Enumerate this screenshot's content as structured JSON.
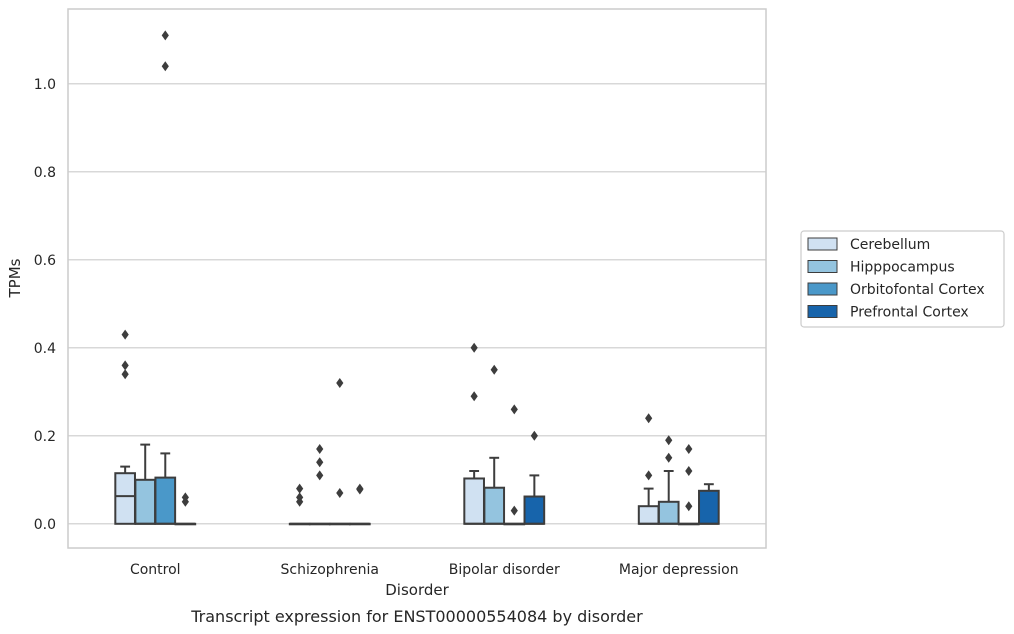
{
  "chart_data": {
    "type": "box",
    "caption": "Transcript expression for ENST00000554084 by disorder",
    "xlabel": "Disorder",
    "ylabel": "TPMs",
    "ylim": [
      -0.055,
      1.17
    ],
    "yticks": [
      0.0,
      0.2,
      0.4,
      0.6,
      0.8,
      1.0
    ],
    "ytick_labels": [
      "0.0",
      "0.2",
      "0.4",
      "0.6",
      "0.8",
      "1.0"
    ],
    "grid": "horizontal",
    "legend_position": "right",
    "categories": [
      "Control",
      "Schizophrenia",
      "Bipolar disorder",
      "Major depression"
    ],
    "series": [
      {
        "name": "Cerebellum",
        "color": "#d0e1f2",
        "boxes": [
          {
            "q1": 0.0,
            "median": 0.063,
            "q3": 0.115,
            "whisker_low": 0.0,
            "whisker_high": 0.13,
            "outliers": [
              0.34,
              0.36,
              0.43
            ]
          },
          {
            "q1": 0.0,
            "median": 0.0,
            "q3": 0.0,
            "whisker_low": 0.0,
            "whisker_high": 0.0,
            "outliers": [
              0.05,
              0.06,
              0.08
            ]
          },
          {
            "q1": 0.0,
            "median": 0.0,
            "q3": 0.103,
            "whisker_low": 0.0,
            "whisker_high": 0.12,
            "outliers": [
              0.29,
              0.4
            ]
          },
          {
            "q1": 0.0,
            "median": 0.0,
            "q3": 0.04,
            "whisker_low": 0.0,
            "whisker_high": 0.08,
            "outliers": [
              0.11,
              0.24
            ]
          }
        ]
      },
      {
        "name": "Hipppocampus",
        "color": "#94c4df",
        "boxes": [
          {
            "q1": 0.0,
            "median": 0.0,
            "q3": 0.1,
            "whisker_low": 0.0,
            "whisker_high": 0.18,
            "outliers": []
          },
          {
            "q1": 0.0,
            "median": 0.0,
            "q3": 0.0,
            "whisker_low": 0.0,
            "whisker_high": 0.0,
            "outliers": [
              0.11,
              0.14,
              0.17
            ]
          },
          {
            "q1": 0.0,
            "median": 0.0,
            "q3": 0.082,
            "whisker_low": 0.0,
            "whisker_high": 0.15,
            "outliers": [
              0.35
            ]
          },
          {
            "q1": 0.0,
            "median": 0.0,
            "q3": 0.05,
            "whisker_low": 0.0,
            "whisker_high": 0.12,
            "outliers": [
              0.15,
              0.19
            ]
          }
        ]
      },
      {
        "name": "Orbitofontal Cortex",
        "color": "#4a98c9",
        "boxes": [
          {
            "q1": 0.0,
            "median": 0.0,
            "q3": 0.105,
            "whisker_low": 0.0,
            "whisker_high": 0.16,
            "outliers": [
              1.04,
              1.11
            ]
          },
          {
            "q1": 0.0,
            "median": 0.0,
            "q3": 0.0,
            "whisker_low": 0.0,
            "whisker_high": 0.0,
            "outliers": [
              0.07,
              0.32
            ]
          },
          {
            "q1": 0.0,
            "median": 0.0,
            "q3": 0.0,
            "whisker_low": 0.0,
            "whisker_high": 0.0,
            "outliers": [
              0.03,
              0.26
            ]
          },
          {
            "q1": 0.0,
            "median": 0.0,
            "q3": 0.0,
            "whisker_low": 0.0,
            "whisker_high": 0.0,
            "outliers": [
              0.04,
              0.12,
              0.17
            ]
          }
        ]
      },
      {
        "name": "Prefrontal Cortex",
        "color": "#1764ab",
        "boxes": [
          {
            "q1": 0.0,
            "median": 0.0,
            "q3": 0.0,
            "whisker_low": 0.0,
            "whisker_high": 0.0,
            "outliers": [
              0.05,
              0.06
            ]
          },
          {
            "q1": 0.0,
            "median": 0.0,
            "q3": 0.0,
            "whisker_low": 0.0,
            "whisker_high": 0.0,
            "outliers": [
              0.078,
              0.08
            ]
          },
          {
            "q1": 0.0,
            "median": 0.0,
            "q3": 0.062,
            "whisker_low": 0.0,
            "whisker_high": 0.11,
            "outliers": [
              0.2
            ]
          },
          {
            "q1": 0.0,
            "median": 0.0,
            "q3": 0.075,
            "whisker_low": 0.0,
            "whisker_high": 0.09,
            "outliers": []
          }
        ]
      }
    ]
  }
}
